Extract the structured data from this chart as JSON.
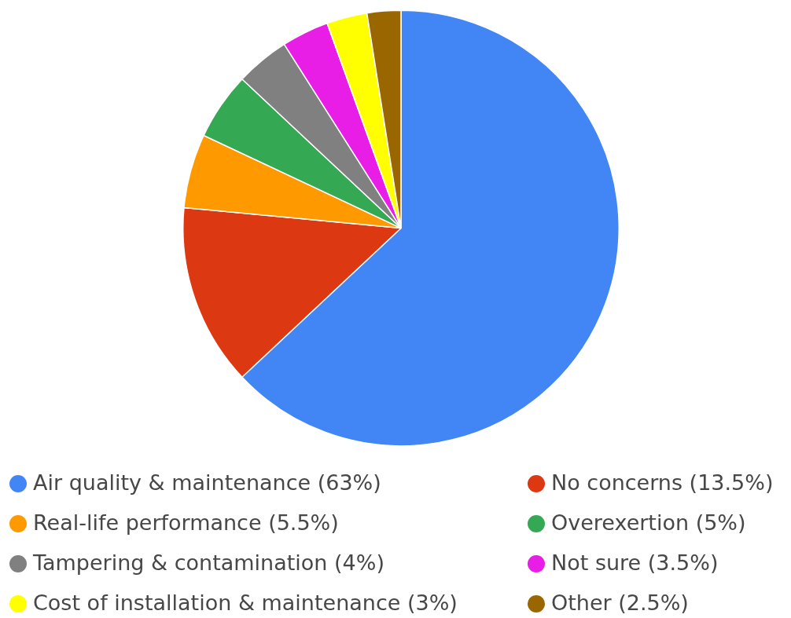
{
  "chart_data": {
    "type": "pie",
    "categories": [
      "Air quality & maintenance (63%)",
      "No concerns (13.5%)",
      "Real-life performance (5.5%)",
      "Overexertion (5%)",
      "Tampering & contamination (4%)",
      "Not sure (3.5%)",
      "Cost of installation & maintenance (3%)",
      "Other (2.5%)"
    ],
    "values": [
      63,
      13.5,
      5.5,
      5,
      4,
      3.5,
      3,
      2.5
    ],
    "colors": [
      "#4285f4",
      "#dc3912",
      "#ff9900",
      "#34a853",
      "#808080",
      "#e91ee6",
      "#ffff00",
      "#996600"
    ],
    "legend": "bottom"
  }
}
